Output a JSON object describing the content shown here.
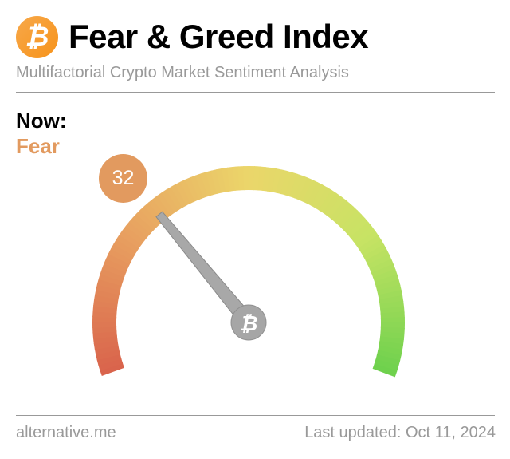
{
  "header": {
    "logo_icon": "bitcoin-icon",
    "title": "Fear & Greed Index",
    "subtitle": "Multifactorial Crypto Market Sentiment Analysis"
  },
  "now": {
    "label": "Now:",
    "classification": "Fear",
    "value": "32",
    "value_numeric": 32,
    "range": [
      0,
      100
    ],
    "color": "#e29a5f"
  },
  "gauge": {
    "colors": [
      "#d9644c",
      "#e8a060",
      "#ebd66a",
      "#c7e364",
      "#6fd14d"
    ],
    "hub_icon": "bitcoin-icon"
  },
  "footer": {
    "source": "alternative.me",
    "updated": "Last updated: Oct 11, 2024"
  }
}
